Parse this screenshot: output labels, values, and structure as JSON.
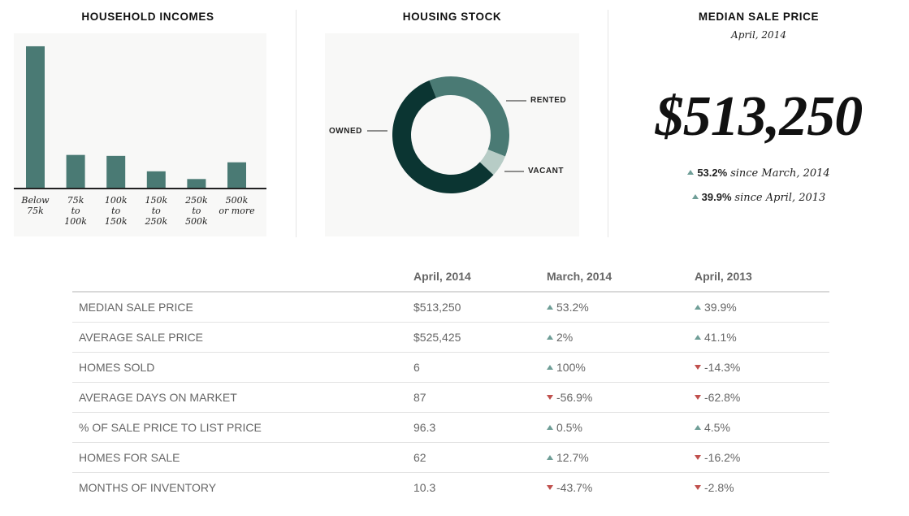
{
  "colors": {
    "primary": "#4a7a74",
    "dark": "#0b3532",
    "light": "#b7ccc6",
    "up": "#6f9e97",
    "down": "#c0504d"
  },
  "household_incomes": {
    "title": "HOUSEHOLD INCOMES"
  },
  "housing_stock": {
    "title": "HOUSING STOCK"
  },
  "median_sale_price": {
    "title": "MEDIAN SALE PRICE",
    "date": "April, 2014",
    "value": "$513,250",
    "changes": [
      {
        "direction": "up",
        "pct": "53.2%",
        "since": "since March, 2014"
      },
      {
        "direction": "up",
        "pct": "39.9%",
        "since": "since April, 2013"
      }
    ]
  },
  "chart_data": [
    {
      "type": "bar",
      "title": "HOUSEHOLD INCOMES",
      "categories": [
        [
          "Below",
          "75k"
        ],
        [
          "75k",
          "to",
          "100k"
        ],
        [
          "100k",
          "to",
          "150k"
        ],
        [
          "150k",
          "to",
          "250k"
        ],
        [
          "250k",
          "to",
          "500k"
        ],
        [
          "500k",
          "or more"
        ]
      ],
      "values": [
        44,
        10.2,
        9.9,
        5.1,
        2.7,
        7.9
      ],
      "ylim": [
        0,
        45
      ],
      "grid": false
    },
    {
      "type": "pie",
      "title": "HOUSING STOCK",
      "slices": [
        {
          "label": "RENTED",
          "value": 37
        },
        {
          "label": "VACANT",
          "value": 6
        },
        {
          "label": "OWNED",
          "value": 57
        }
      ]
    }
  ],
  "table": {
    "headers": [
      "",
      "April, 2014",
      "March, 2014",
      "April, 2013"
    ],
    "rows": [
      {
        "label": "MEDIAN SALE PRICE",
        "value": "$513,250",
        "march": {
          "dir": "up",
          "text": "53.2%"
        },
        "april": {
          "dir": "up",
          "text": "39.9%"
        }
      },
      {
        "label": "AVERAGE SALE PRICE",
        "value": "$525,425",
        "march": {
          "dir": "up",
          "text": "2%"
        },
        "april": {
          "dir": "up",
          "text": "41.1%"
        }
      },
      {
        "label": "HOMES SOLD",
        "value": "6",
        "march": {
          "dir": "up",
          "text": "100%"
        },
        "april": {
          "dir": "down",
          "text": "-14.3%"
        }
      },
      {
        "label": "AVERAGE DAYS ON MARKET",
        "value": "87",
        "march": {
          "dir": "down",
          "text": "-56.9%"
        },
        "april": {
          "dir": "down",
          "text": "-62.8%"
        }
      },
      {
        "label": "% OF SALE PRICE TO LIST PRICE",
        "value": "96.3",
        "march": {
          "dir": "up",
          "text": "0.5%"
        },
        "april": {
          "dir": "up",
          "text": "4.5%"
        }
      },
      {
        "label": "HOMES FOR SALE",
        "value": "62",
        "march": {
          "dir": "up",
          "text": "12.7%"
        },
        "april": {
          "dir": "down",
          "text": "-16.2%"
        }
      },
      {
        "label": "MONTHS OF INVENTORY",
        "value": "10.3",
        "march": {
          "dir": "down",
          "text": "-43.7%"
        },
        "april": {
          "dir": "down",
          "text": "-2.8%"
        }
      }
    ]
  }
}
